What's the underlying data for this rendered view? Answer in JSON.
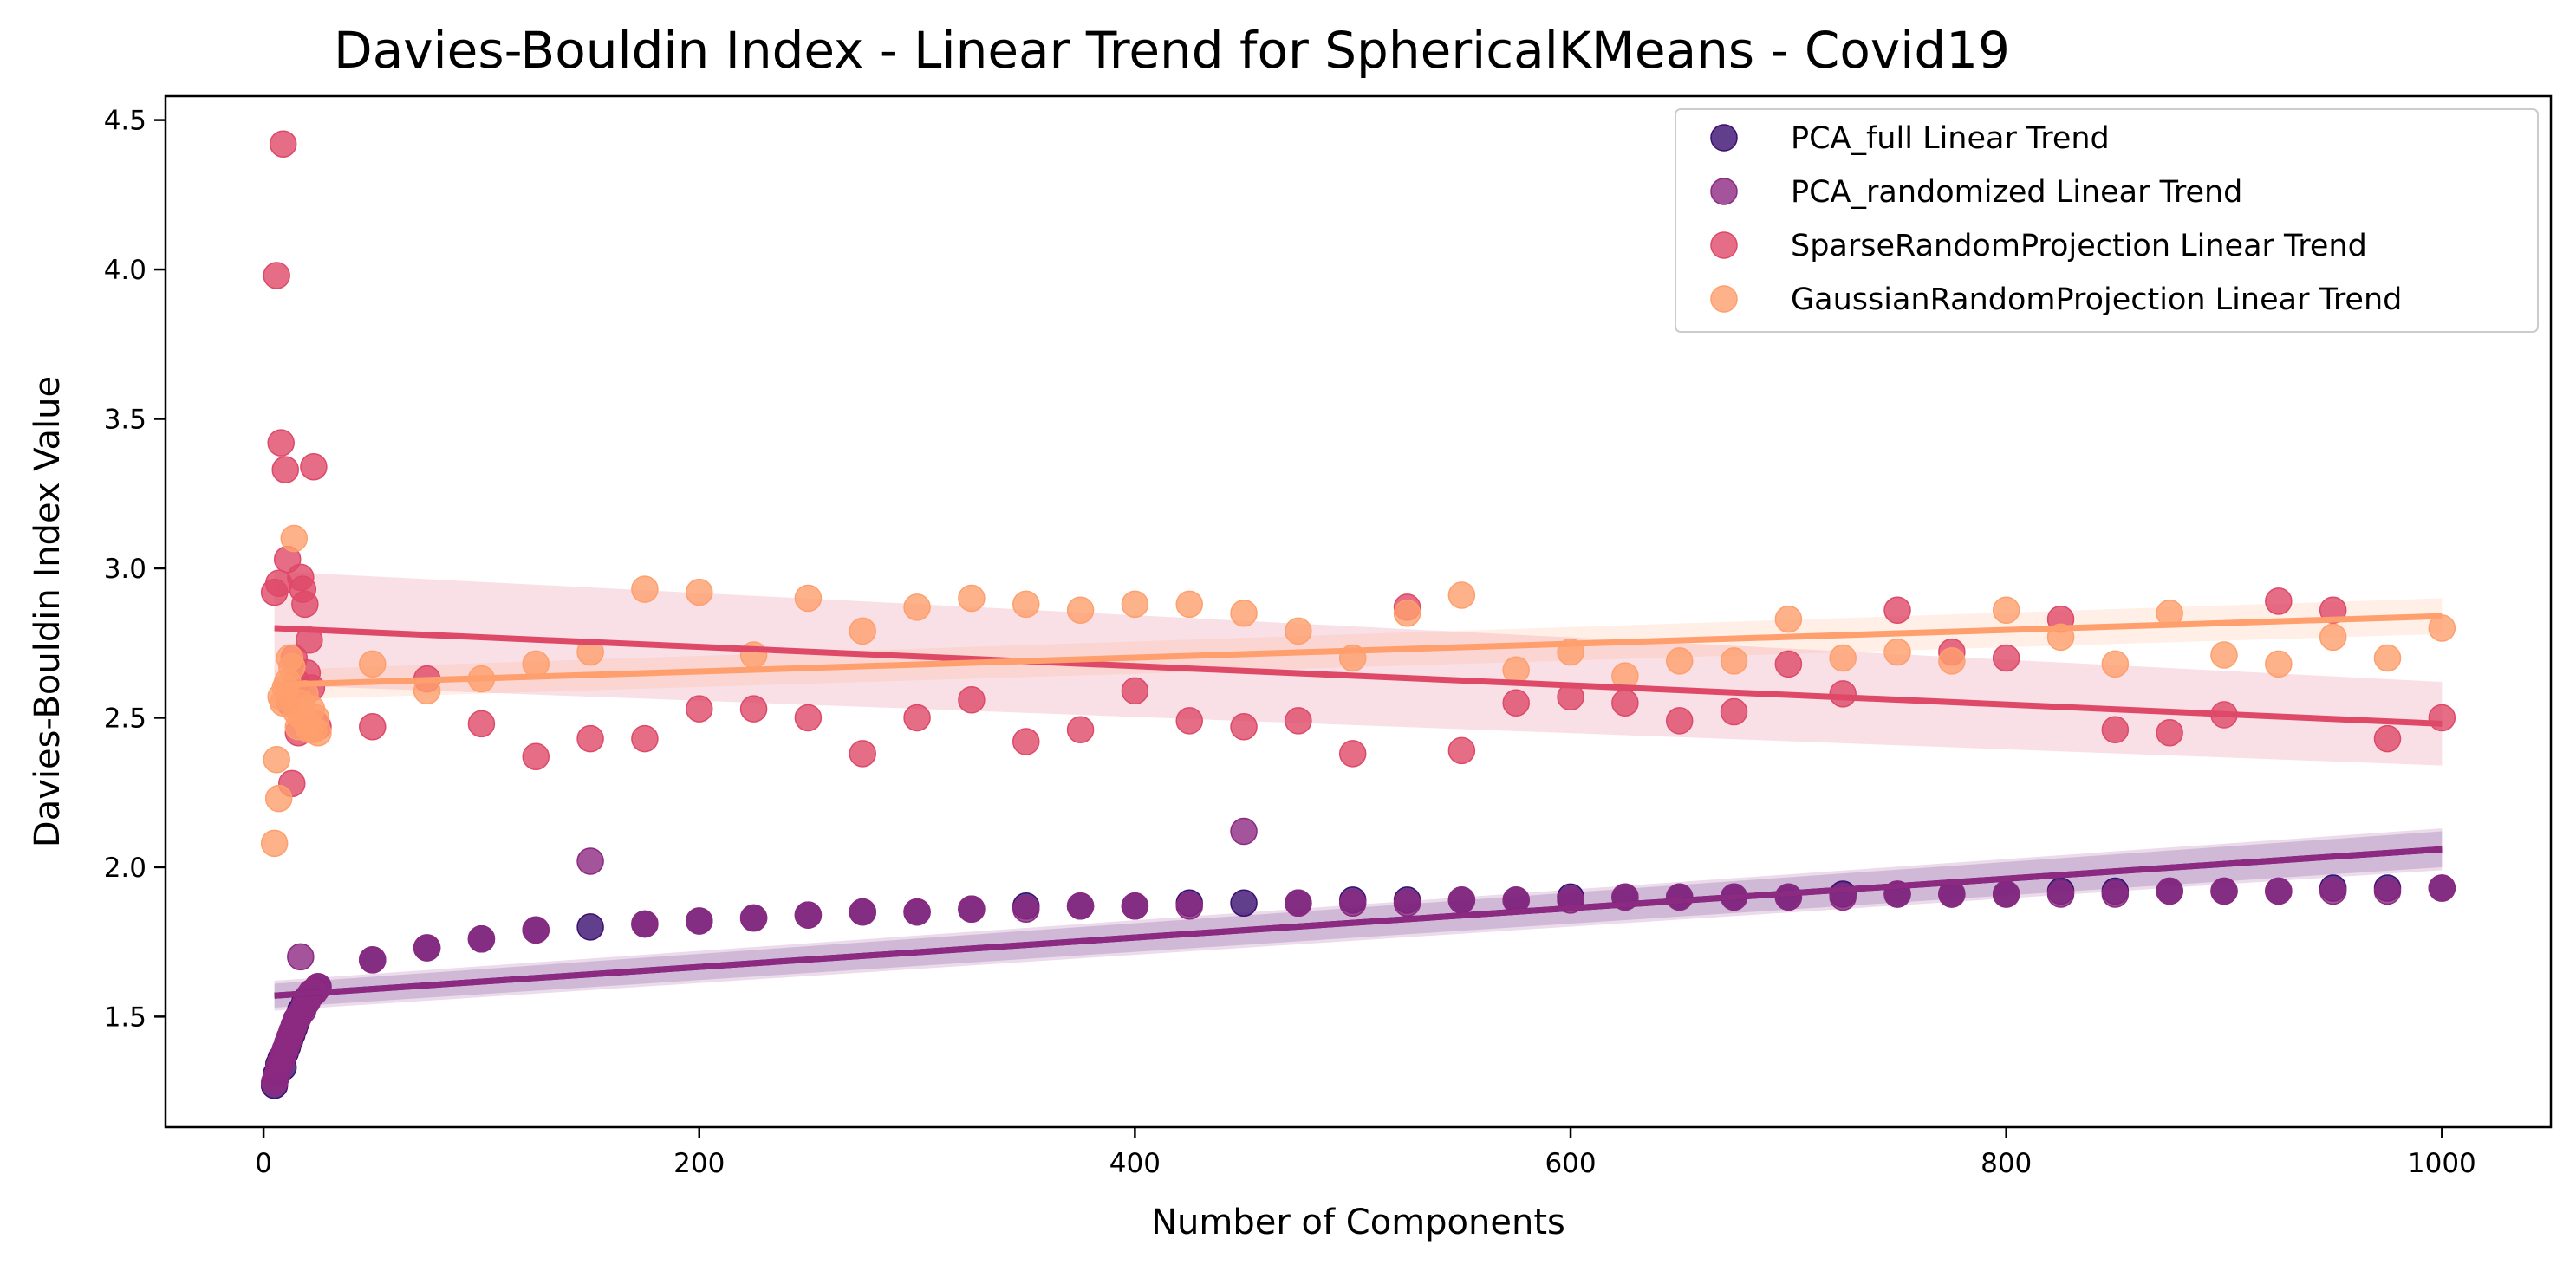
{
  "chart_data": {
    "type": "scatter",
    "title": "Davies-Bouldin Index - Linear Trend for SphericalKMeans - Covid19",
    "xlabel": "Number of Components",
    "ylabel": "Davies-Bouldin Index Value",
    "xlim": [
      -45,
      1050
    ],
    "ylim": [
      1.13,
      4.58
    ],
    "x_ticks": [
      0,
      200,
      400,
      600,
      800,
      1000
    ],
    "y_ticks": [
      1.5,
      2.0,
      2.5,
      3.0,
      3.5,
      4.0,
      4.5
    ],
    "x_tick_labels": [
      "0",
      "200",
      "400",
      "600",
      "800",
      "1000"
    ],
    "y_tick_labels": [
      "1.5",
      "2.0",
      "2.5",
      "3.0",
      "3.5",
      "4.0",
      "4.5"
    ],
    "grid": false,
    "legend_position": "top-right",
    "series": [
      {
        "name": "PCA_full Linear Trend",
        "color": "#3b0f70",
        "trend": {
          "x": [
            5,
            1000
          ],
          "y": [
            1.57,
            2.06
          ],
          "band": [
            0.04,
            0.06
          ]
        },
        "x": [
          5,
          6,
          7,
          8,
          9,
          10,
          11,
          12,
          13,
          14,
          15,
          16,
          17,
          18,
          19,
          20,
          21,
          22,
          23,
          24,
          25,
          50,
          75,
          100,
          125,
          150,
          175,
          200,
          225,
          250,
          275,
          300,
          325,
          350,
          375,
          400,
          425,
          450,
          475,
          500,
          525,
          550,
          575,
          600,
          625,
          650,
          675,
          700,
          725,
          750,
          775,
          800,
          825,
          850,
          875,
          900,
          925,
          950,
          975,
          1000
        ],
        "y": [
          1.27,
          1.31,
          1.34,
          1.36,
          1.33,
          1.38,
          1.4,
          1.42,
          1.44,
          1.46,
          1.48,
          1.5,
          1.52,
          1.53,
          1.55,
          1.56,
          1.57,
          1.58,
          1.58,
          1.59,
          1.6,
          1.69,
          1.73,
          1.76,
          1.79,
          1.8,
          1.81,
          1.82,
          1.83,
          1.84,
          1.85,
          1.85,
          1.86,
          1.87,
          1.87,
          1.87,
          1.88,
          1.88,
          1.88,
          1.89,
          1.89,
          1.89,
          1.89,
          1.9,
          1.9,
          1.9,
          1.9,
          1.9,
          1.91,
          1.91,
          1.91,
          1.91,
          1.92,
          1.92,
          1.92,
          1.92,
          1.92,
          1.93,
          1.93,
          1.93
        ]
      },
      {
        "name": "PCA_randomized Linear Trend",
        "color": "#8c2981",
        "trend": {
          "x": [
            5,
            1000
          ],
          "y": [
            1.57,
            2.06
          ],
          "band": [
            0.05,
            0.07
          ]
        },
        "x": [
          5,
          6,
          7,
          8,
          9,
          10,
          11,
          12,
          13,
          14,
          15,
          16,
          17,
          18,
          19,
          20,
          21,
          22,
          23,
          24,
          25,
          50,
          75,
          100,
          125,
          150,
          175,
          200,
          225,
          250,
          275,
          300,
          325,
          350,
          375,
          400,
          425,
          450,
          475,
          500,
          525,
          550,
          575,
          600,
          625,
          650,
          675,
          700,
          725,
          750,
          775,
          800,
          825,
          850,
          875,
          900,
          925,
          950,
          975,
          1000
        ],
        "y": [
          1.28,
          1.3,
          1.33,
          1.35,
          1.37,
          1.39,
          1.41,
          1.43,
          1.45,
          1.47,
          1.49,
          1.5,
          1.7,
          1.52,
          1.54,
          1.55,
          1.57,
          1.58,
          1.58,
          1.59,
          1.6,
          1.69,
          1.73,
          1.76,
          1.79,
          2.02,
          1.81,
          1.82,
          1.83,
          1.84,
          1.85,
          1.85,
          1.86,
          1.86,
          1.87,
          1.87,
          1.87,
          2.12,
          1.88,
          1.88,
          1.88,
          1.89,
          1.89,
          1.89,
          1.9,
          1.9,
          1.9,
          1.9,
          1.9,
          1.91,
          1.91,
          1.91,
          1.91,
          1.91,
          1.92,
          1.92,
          1.92,
          1.92,
          1.92,
          1.93
        ]
      },
      {
        "name": "SparseRandomProjection Linear Trend",
        "color": "#de4968",
        "trend": {
          "x": [
            5,
            1000
          ],
          "y": [
            2.8,
            2.48
          ],
          "band": [
            0.19,
            0.14
          ]
        },
        "x": [
          5,
          6,
          7,
          8,
          9,
          10,
          11,
          12,
          13,
          14,
          15,
          16,
          17,
          18,
          19,
          20,
          21,
          22,
          23,
          24,
          25,
          50,
          75,
          100,
          125,
          150,
          175,
          200,
          225,
          250,
          275,
          300,
          325,
          350,
          375,
          400,
          425,
          450,
          475,
          500,
          525,
          550,
          575,
          600,
          625,
          650,
          675,
          700,
          725,
          750,
          775,
          800,
          825,
          850,
          875,
          900,
          925,
          950,
          975,
          1000
        ],
        "y": [
          2.92,
          3.98,
          2.95,
          3.42,
          4.42,
          3.33,
          3.03,
          2.55,
          2.28,
          2.7,
          2.62,
          2.45,
          2.97,
          2.93,
          2.88,
          2.65,
          2.76,
          2.6,
          3.34,
          2.48,
          2.47,
          2.47,
          2.63,
          2.48,
          2.37,
          2.43,
          2.43,
          2.53,
          2.53,
          2.5,
          2.38,
          2.5,
          2.56,
          2.42,
          2.46,
          2.59,
          2.49,
          2.47,
          2.49,
          2.38,
          2.87,
          2.39,
          2.55,
          2.57,
          2.55,
          2.49,
          2.52,
          2.68,
          2.58,
          2.86,
          2.72,
          2.7,
          2.83,
          2.46,
          2.45,
          2.51,
          2.89,
          2.86,
          2.43,
          2.5
        ]
      },
      {
        "name": "GaussianRandomProjection Linear Trend",
        "color": "#fe9f6d",
        "trend": {
          "x": [
            5,
            1000
          ],
          "y": [
            2.61,
            2.84
          ],
          "band": [
            0.05,
            0.06
          ]
        },
        "x": [
          5,
          6,
          7,
          8,
          9,
          10,
          11,
          12,
          13,
          14,
          15,
          16,
          17,
          18,
          19,
          20,
          21,
          22,
          23,
          24,
          25,
          50,
          75,
          100,
          125,
          150,
          175,
          200,
          225,
          250,
          275,
          300,
          325,
          350,
          375,
          400,
          425,
          450,
          475,
          500,
          525,
          550,
          575,
          600,
          625,
          650,
          675,
          700,
          725,
          750,
          775,
          800,
          825,
          850,
          875,
          900,
          925,
          950,
          975,
          1000
        ],
        "y": [
          2.08,
          2.36,
          2.23,
          2.57,
          2.55,
          2.6,
          2.62,
          2.7,
          2.67,
          3.1,
          2.52,
          2.47,
          2.55,
          2.5,
          2.58,
          2.48,
          2.46,
          2.53,
          2.46,
          2.5,
          2.45,
          2.68,
          2.59,
          2.63,
          2.68,
          2.72,
          2.93,
          2.92,
          2.71,
          2.9,
          2.79,
          2.87,
          2.9,
          2.88,
          2.86,
          2.88,
          2.88,
          2.85,
          2.79,
          2.7,
          2.85,
          2.91,
          2.66,
          2.72,
          2.64,
          2.69,
          2.69,
          2.83,
          2.7,
          2.72,
          2.69,
          2.86,
          2.77,
          2.68,
          2.85,
          2.71,
          2.68,
          2.77,
          2.7,
          2.8
        ]
      }
    ]
  }
}
